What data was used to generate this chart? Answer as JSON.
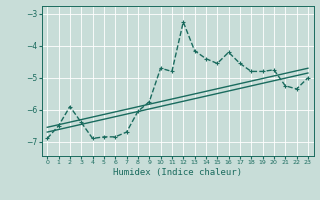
{
  "xlabel": "Humidex (Indice chaleur)",
  "bg_color": "#c8ddd8",
  "grid_color": "#ffffff",
  "line_color": "#1a6b5e",
  "xlim": [
    -0.5,
    23.5
  ],
  "ylim": [
    -7.45,
    -2.75
  ],
  "yticks": [
    -7,
    -6,
    -5,
    -4,
    -3
  ],
  "xticks": [
    0,
    1,
    2,
    3,
    4,
    5,
    6,
    7,
    8,
    9,
    10,
    11,
    12,
    13,
    14,
    15,
    16,
    17,
    18,
    19,
    20,
    21,
    22,
    23
  ],
  "main_series_x": [
    0,
    1,
    2,
    3,
    4,
    5,
    6,
    7,
    8,
    9,
    10,
    11,
    12,
    13,
    14,
    15,
    16,
    17,
    18,
    19,
    20,
    21,
    22,
    23
  ],
  "main_series_y": [
    -6.9,
    -6.5,
    -5.9,
    -6.4,
    -6.9,
    -6.85,
    -6.85,
    -6.7,
    -6.05,
    -5.75,
    -4.7,
    -4.8,
    -3.25,
    -4.15,
    -4.4,
    -4.55,
    -4.2,
    -4.55,
    -4.8,
    -4.8,
    -4.75,
    -5.25,
    -5.35,
    -5.0
  ],
  "line1_x": [
    0,
    23
  ],
  "line1_y": [
    -6.7,
    -4.85
  ],
  "line2_x": [
    0,
    23
  ],
  "line2_y": [
    -6.55,
    -4.7
  ],
  "line_width": 1.0
}
